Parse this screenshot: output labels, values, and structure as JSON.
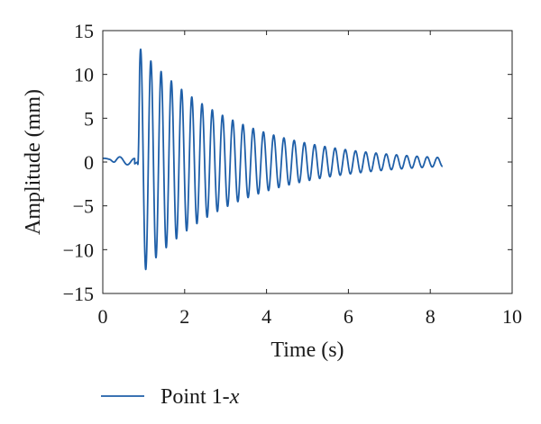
{
  "chart_data": {
    "type": "line",
    "xlabel": "Time (s)",
    "ylabel": "Amplitude (mm)",
    "xlim": [
      0,
      10
    ],
    "ylim": [
      -15,
      15
    ],
    "xticks": [
      0,
      2,
      4,
      6,
      8,
      10
    ],
    "yticks": [
      15,
      10,
      5,
      0,
      -5,
      -10,
      -15
    ],
    "grid": false,
    "legend_position": "below",
    "series": [
      {
        "name": "Point 1-x",
        "color": "#1f5fa8",
        "duration": [
          0,
          8.3
        ],
        "pre_event": {
          "t_end": 0.78,
          "offset": 0.5,
          "amplitude": 0.4,
          "frequency": 2.8
        },
        "event_time": 0.85,
        "oscillation": {
          "frequency": 4.0,
          "initial_amplitude": 13.3,
          "final_amplitude": 0.5,
          "minimum": -13.7
        }
      }
    ]
  }
}
